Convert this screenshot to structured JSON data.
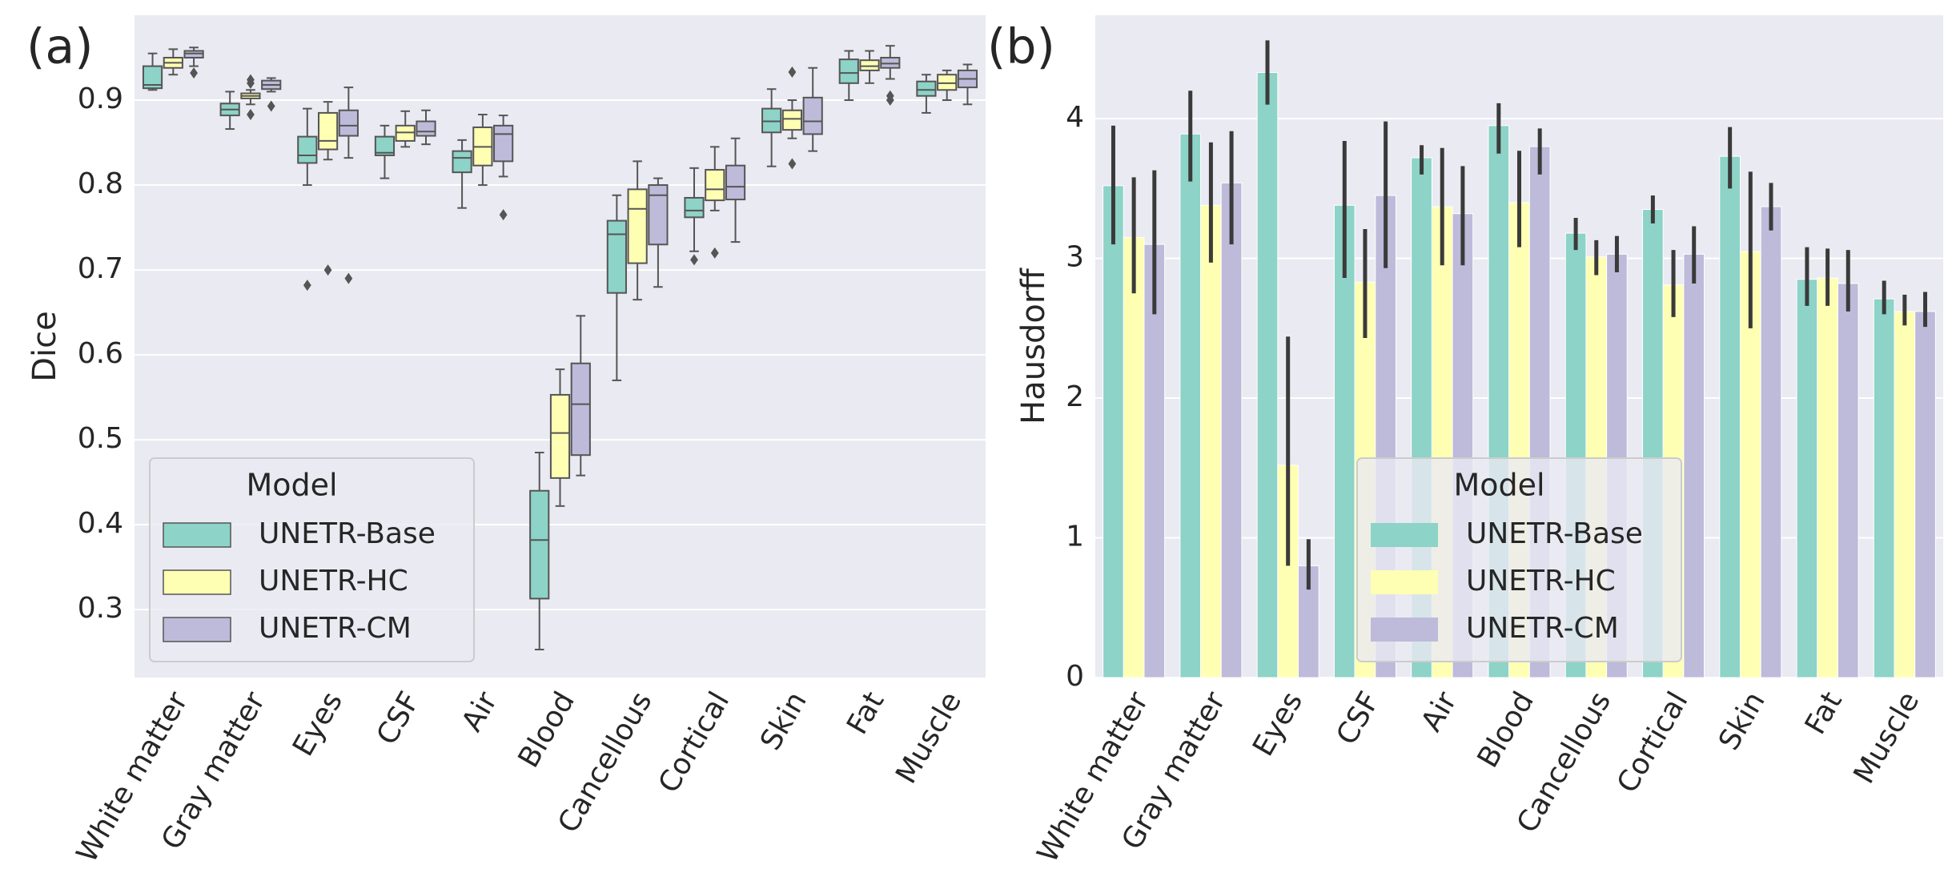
{
  "chart_data": [
    {
      "type": "box",
      "title": "(a)",
      "y_label": "Dice",
      "legend_title": "Model",
      "legend_loc": "lower left",
      "grid": true,
      "categories": [
        "White matter",
        "Gray matter",
        "Eyes",
        "CSF",
        "Air",
        "Blood",
        "Cancellous",
        "Cortical",
        "Skin",
        "Fat",
        "Muscle"
      ],
      "ylim": [
        0.22,
        1.0
      ],
      "yticks": [
        0.3,
        0.4,
        0.5,
        0.6,
        0.7,
        0.8,
        0.9
      ],
      "series": [
        {
          "name": "UNETR-Base",
          "color": "#8dd3c7",
          "boxes": [
            {
              "whislo": 0.912,
              "q1": 0.914,
              "med": 0.918,
              "q3": 0.94,
              "whishi": 0.955
            },
            {
              "whislo": 0.866,
              "q1": 0.882,
              "med": 0.889,
              "q3": 0.896,
              "whishi": 0.91
            },
            {
              "whislo": 0.8,
              "q1": 0.826,
              "med": 0.835,
              "q3": 0.857,
              "whishi": 0.89,
              "fliers": [
                0.682
              ]
            },
            {
              "whislo": 0.808,
              "q1": 0.835,
              "med": 0.838,
              "q3": 0.857,
              "whishi": 0.87
            },
            {
              "whislo": 0.773,
              "q1": 0.815,
              "med": 0.832,
              "q3": 0.84,
              "whishi": 0.853
            },
            {
              "whislo": 0.253,
              "q1": 0.313,
              "med": 0.382,
              "q3": 0.44,
              "whishi": 0.485
            },
            {
              "whislo": 0.57,
              "q1": 0.673,
              "med": 0.742,
              "q3": 0.758,
              "whishi": 0.788
            },
            {
              "whislo": 0.722,
              "q1": 0.762,
              "med": 0.77,
              "q3": 0.785,
              "whishi": 0.82,
              "fliers": [
                0.712
              ]
            },
            {
              "whislo": 0.822,
              "q1": 0.862,
              "med": 0.875,
              "q3": 0.89,
              "whishi": 0.913
            },
            {
              "whislo": 0.9,
              "q1": 0.92,
              "med": 0.932,
              "q3": 0.948,
              "whishi": 0.958
            },
            {
              "whislo": 0.885,
              "q1": 0.905,
              "med": 0.912,
              "q3": 0.922,
              "whishi": 0.93
            }
          ]
        },
        {
          "name": "UNETR-HC",
          "color": "#ffffb3",
          "boxes": [
            {
              "whislo": 0.93,
              "q1": 0.938,
              "med": 0.944,
              "q3": 0.95,
              "whishi": 0.96
            },
            {
              "whislo": 0.895,
              "q1": 0.902,
              "med": 0.905,
              "q3": 0.908,
              "whishi": 0.912,
              "fliers": [
                0.883,
                0.92,
                0.924
              ]
            },
            {
              "whislo": 0.83,
              "q1": 0.842,
              "med": 0.852,
              "q3": 0.885,
              "whishi": 0.898,
              "fliers": [
                0.7
              ]
            },
            {
              "whislo": 0.845,
              "q1": 0.852,
              "med": 0.862,
              "q3": 0.87,
              "whishi": 0.887
            },
            {
              "whislo": 0.8,
              "q1": 0.823,
              "med": 0.845,
              "q3": 0.868,
              "whishi": 0.883
            },
            {
              "whislo": 0.422,
              "q1": 0.455,
              "med": 0.508,
              "q3": 0.553,
              "whishi": 0.583
            },
            {
              "whislo": 0.665,
              "q1": 0.708,
              "med": 0.772,
              "q3": 0.795,
              "whishi": 0.828
            },
            {
              "whislo": 0.77,
              "q1": 0.782,
              "med": 0.795,
              "q3": 0.818,
              "whishi": 0.845,
              "fliers": [
                0.72
              ]
            },
            {
              "whislo": 0.855,
              "q1": 0.865,
              "med": 0.878,
              "q3": 0.888,
              "whishi": 0.9,
              "fliers": [
                0.825,
                0.933
              ]
            },
            {
              "whislo": 0.92,
              "q1": 0.935,
              "med": 0.94,
              "q3": 0.947,
              "whishi": 0.958
            },
            {
              "whislo": 0.9,
              "q1": 0.912,
              "med": 0.92,
              "q3": 0.93,
              "whishi": 0.935
            }
          ]
        },
        {
          "name": "UNETR-CM",
          "color": "#bebada",
          "boxes": [
            {
              "whislo": 0.94,
              "q1": 0.95,
              "med": 0.955,
              "q3": 0.958,
              "whishi": 0.962,
              "fliers": [
                0.932
              ]
            },
            {
              "whislo": 0.91,
              "q1": 0.913,
              "med": 0.918,
              "q3": 0.923,
              "whishi": 0.926,
              "fliers": [
                0.893
              ]
            },
            {
              "whislo": 0.832,
              "q1": 0.858,
              "med": 0.87,
              "q3": 0.888,
              "whishi": 0.915,
              "fliers": [
                0.69
              ]
            },
            {
              "whislo": 0.848,
              "q1": 0.858,
              "med": 0.863,
              "q3": 0.875,
              "whishi": 0.888
            },
            {
              "whislo": 0.81,
              "q1": 0.828,
              "med": 0.86,
              "q3": 0.87,
              "whishi": 0.882,
              "fliers": [
                0.765
              ]
            },
            {
              "whislo": 0.458,
              "q1": 0.482,
              "med": 0.542,
              "q3": 0.59,
              "whishi": 0.646
            },
            {
              "whislo": 0.68,
              "q1": 0.73,
              "med": 0.788,
              "q3": 0.8,
              "whishi": 0.808
            },
            {
              "whislo": 0.733,
              "q1": 0.783,
              "med": 0.798,
              "q3": 0.823,
              "whishi": 0.855
            },
            {
              "whislo": 0.84,
              "q1": 0.86,
              "med": 0.875,
              "q3": 0.903,
              "whishi": 0.938
            },
            {
              "whislo": 0.925,
              "q1": 0.938,
              "med": 0.943,
              "q3": 0.95,
              "whishi": 0.964,
              "fliers": [
                0.9,
                0.905
              ]
            },
            {
              "whislo": 0.895,
              "q1": 0.915,
              "med": 0.925,
              "q3": 0.935,
              "whishi": 0.942
            }
          ]
        }
      ]
    },
    {
      "type": "bar",
      "title": "(b)",
      "y_label": "Hausdorff",
      "legend_title": "Model",
      "legend_loc": "lower center",
      "grid": true,
      "categories": [
        "White matter",
        "Gray matter",
        "Eyes",
        "CSF",
        "Air",
        "Blood",
        "Cancellous",
        "Cortical",
        "Skin",
        "Fat",
        "Muscle"
      ],
      "ylim": [
        0,
        4.74
      ],
      "yticks": [
        0,
        1,
        2,
        3,
        4
      ],
      "series": [
        {
          "name": "UNETR-Base",
          "color": "#8dd3c7",
          "values": [
            3.52,
            3.89,
            4.33,
            3.38,
            3.72,
            3.95,
            3.18,
            3.35,
            3.73,
            2.85,
            2.71
          ],
          "ci_low": [
            3.1,
            3.55,
            4.1,
            2.86,
            3.6,
            3.75,
            3.06,
            3.25,
            3.5,
            2.66,
            2.6
          ],
          "ci_high": [
            3.95,
            4.2,
            4.56,
            3.84,
            3.81,
            4.11,
            3.29,
            3.45,
            3.94,
            3.08,
            2.84
          ]
        },
        {
          "name": "UNETR-HC",
          "color": "#ffffb3",
          "values": [
            3.15,
            3.38,
            1.52,
            2.83,
            3.37,
            3.4,
            3.01,
            2.81,
            3.05,
            2.86,
            2.62
          ],
          "ci_low": [
            2.75,
            2.97,
            0.8,
            2.43,
            2.95,
            3.08,
            2.88,
            2.58,
            2.5,
            2.66,
            2.52
          ],
          "ci_high": [
            3.58,
            3.83,
            2.44,
            3.21,
            3.79,
            3.77,
            3.13,
            3.06,
            3.62,
            3.07,
            2.74
          ]
        },
        {
          "name": "UNETR-CM",
          "color": "#bebada",
          "values": [
            3.1,
            3.54,
            0.8,
            3.45,
            3.32,
            3.8,
            3.03,
            3.03,
            3.37,
            2.82,
            2.62
          ],
          "ci_low": [
            2.6,
            3.1,
            0.63,
            2.93,
            2.95,
            3.6,
            2.9,
            2.82,
            3.2,
            2.62,
            2.51
          ],
          "ci_high": [
            3.63,
            3.91,
            0.99,
            3.98,
            3.66,
            3.93,
            3.16,
            3.23,
            3.54,
            3.06,
            2.76
          ]
        }
      ]
    }
  ]
}
